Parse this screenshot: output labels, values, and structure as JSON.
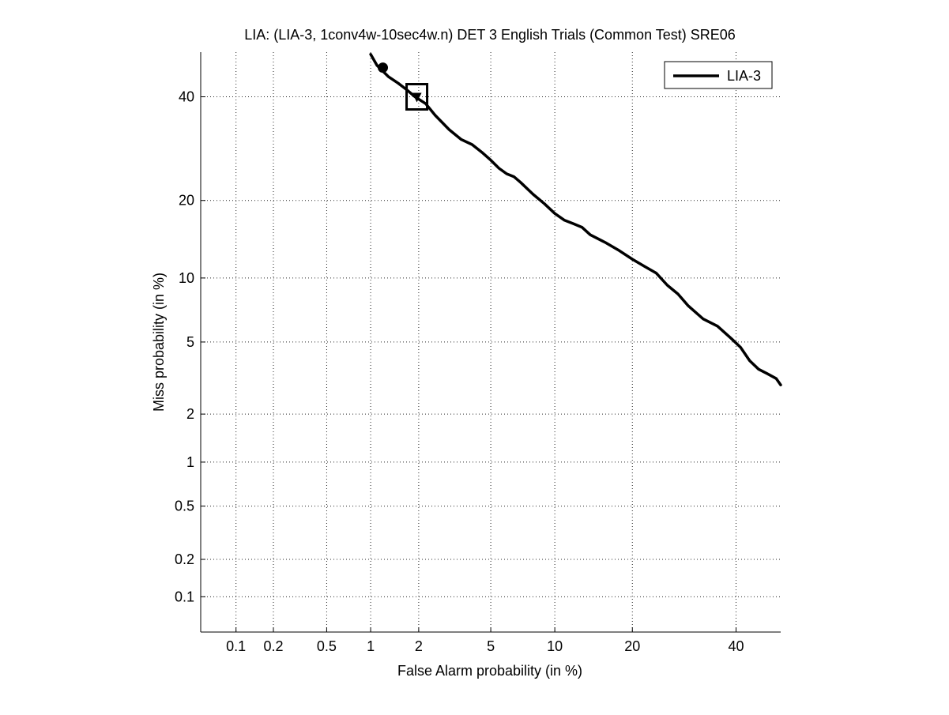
{
  "chart_data": {
    "type": "line",
    "title": "LIA: (LIA-3, 1conv4w-10sec4w.n) DET 3 English Trials (Common Test) SRE06",
    "xlabel": "False Alarm probability (in %)",
    "ylabel": "Miss probability (in %)",
    "scale": "normal-deviate (probit) on both axes",
    "xlim": [
      0.05,
      50
    ],
    "ylim": [
      0.05,
      50
    ],
    "x_ticks": [
      0.1,
      0.2,
      0.5,
      1,
      2,
      5,
      10,
      20,
      40
    ],
    "x_tick_labels": [
      "0.1",
      "0.2",
      "0.5",
      "1",
      "2",
      "5",
      "10",
      "20",
      "40"
    ],
    "y_ticks": [
      0.1,
      0.2,
      0.5,
      1,
      2,
      5,
      10,
      20,
      40
    ],
    "y_tick_labels": [
      "0.1",
      "0.2",
      "0.5",
      "1",
      "2",
      "5",
      "10",
      "20",
      "40"
    ],
    "grid": "dotted",
    "legend": {
      "position": "top-right",
      "entries": [
        "LIA-3"
      ]
    },
    "series": [
      {
        "name": "LIA-3",
        "color": "#000000",
        "points": [
          [
            1.0,
            49.5
          ],
          [
            1.1,
            47.0
          ],
          [
            1.3,
            44.5
          ],
          [
            1.5,
            43.0
          ],
          [
            1.7,
            41.5
          ],
          [
            1.9,
            40.0
          ],
          [
            2.2,
            38.5
          ],
          [
            2.5,
            36.0
          ],
          [
            3.0,
            33.0
          ],
          [
            3.5,
            31.0
          ],
          [
            4.0,
            30.0
          ],
          [
            4.5,
            28.5
          ],
          [
            5.0,
            27.0
          ],
          [
            5.5,
            25.5
          ],
          [
            6.0,
            24.5
          ],
          [
            6.5,
            24.0
          ],
          [
            7.0,
            23.0
          ],
          [
            8.0,
            21.0
          ],
          [
            9.0,
            19.5
          ],
          [
            10.0,
            18.0
          ],
          [
            11.0,
            17.0
          ],
          [
            12.0,
            16.5
          ],
          [
            13.0,
            16.0
          ],
          [
            14.0,
            15.0
          ],
          [
            16.0,
            14.0
          ],
          [
            18.0,
            13.0
          ],
          [
            20.0,
            12.0
          ],
          [
            22.0,
            11.2
          ],
          [
            24.0,
            10.5
          ],
          [
            26.0,
            9.3
          ],
          [
            28.0,
            8.5
          ],
          [
            30.0,
            7.5
          ],
          [
            33.0,
            6.5
          ],
          [
            36.0,
            6.0
          ],
          [
            39.0,
            5.2
          ],
          [
            41.0,
            4.7
          ],
          [
            43.0,
            4.0
          ],
          [
            45.0,
            3.6
          ],
          [
            47.0,
            3.4
          ],
          [
            49.0,
            3.2
          ],
          [
            50.0,
            2.95
          ]
        ]
      }
    ],
    "markers": [
      {
        "kind": "circle",
        "x": 1.2,
        "y": 46.5
      },
      {
        "kind": "triangle",
        "x": 1.95,
        "y": 40.0
      },
      {
        "kind": "square",
        "x": 1.95,
        "y": 40.0
      }
    ]
  }
}
